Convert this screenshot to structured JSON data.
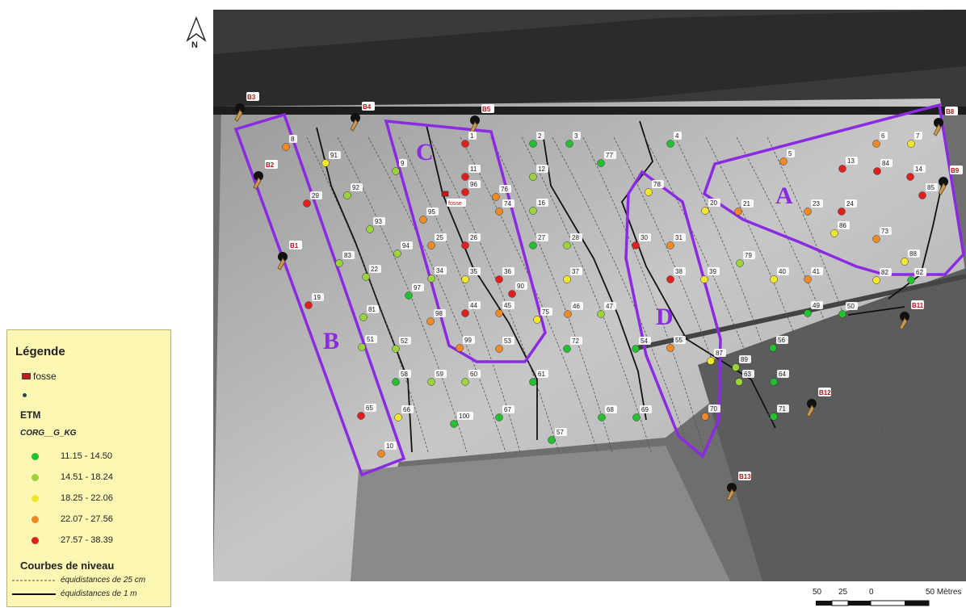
{
  "north_arrow": {
    "label": "N"
  },
  "legend": {
    "title": "Légende",
    "fosse_label": "fosse",
    "etm_label": "ETM",
    "field_label": "CORG__G_KG",
    "classes": [
      {
        "range": "11.15 - 14.50",
        "color": "#22c22e"
      },
      {
        "range": "14.51 - 18.24",
        "color": "#9bd33a"
      },
      {
        "range": "18.25 - 22.06",
        "color": "#f1e62a"
      },
      {
        "range": "22.07 - 27.56",
        "color": "#ef8a24"
      },
      {
        "range": "27.57 - 38.39",
        "color": "#e0201e"
      }
    ],
    "contours_title": "Courbes de niveau",
    "contour_dashed_label": "équidistances de 25 cm",
    "contour_solid_label": "équidistances de 1 m"
  },
  "scale_bar": {
    "ticks": [
      "50",
      "25",
      "0",
      "50 Mètres"
    ]
  },
  "zones": [
    {
      "label": "A",
      "color": "#8a2be2"
    },
    {
      "label": "B",
      "color": "#8a2be2"
    },
    {
      "label": "C",
      "color": "#8a2be2"
    },
    {
      "label": "D",
      "color": "#8a2be2"
    }
  ],
  "boreholes": [
    "B1",
    "B2",
    "B3",
    "B4",
    "B5",
    "B8",
    "B9",
    "B11",
    "B12",
    "B13"
  ],
  "fosse_marker": "fosse",
  "sample_points": [
    {
      "id": "1",
      "cls": 4
    },
    {
      "id": "2",
      "cls": 0
    },
    {
      "id": "3",
      "cls": 0
    },
    {
      "id": "4",
      "cls": 0
    },
    {
      "id": "5",
      "cls": 3
    },
    {
      "id": "6",
      "cls": 3
    },
    {
      "id": "7",
      "cls": 2
    },
    {
      "id": "8",
      "cls": 3
    },
    {
      "id": "9",
      "cls": 1
    },
    {
      "id": "10",
      "cls": 3
    },
    {
      "id": "11",
      "cls": 4
    },
    {
      "id": "12",
      "cls": 1
    },
    {
      "id": "13",
      "cls": 4
    },
    {
      "id": "14",
      "cls": 4
    },
    {
      "id": "16",
      "cls": 1
    },
    {
      "id": "19",
      "cls": 4
    },
    {
      "id": "20",
      "cls": 2
    },
    {
      "id": "21",
      "cls": 3
    },
    {
      "id": "22",
      "cls": 1
    },
    {
      "id": "23",
      "cls": 3
    },
    {
      "id": "24",
      "cls": 4
    },
    {
      "id": "25",
      "cls": 3
    },
    {
      "id": "26",
      "cls": 4
    },
    {
      "id": "27",
      "cls": 0
    },
    {
      "id": "28",
      "cls": 1
    },
    {
      "id": "29",
      "cls": 4
    },
    {
      "id": "30",
      "cls": 4
    },
    {
      "id": "31",
      "cls": 3
    },
    {
      "id": "34",
      "cls": 1
    },
    {
      "id": "35",
      "cls": 2
    },
    {
      "id": "36",
      "cls": 4
    },
    {
      "id": "37",
      "cls": 2
    },
    {
      "id": "38",
      "cls": 4
    },
    {
      "id": "39",
      "cls": 2
    },
    {
      "id": "40",
      "cls": 2
    },
    {
      "id": "41",
      "cls": 3
    },
    {
      "id": "44",
      "cls": 4
    },
    {
      "id": "45",
      "cls": 3
    },
    {
      "id": "46",
      "cls": 3
    },
    {
      "id": "47",
      "cls": 1
    },
    {
      "id": "49",
      "cls": 0
    },
    {
      "id": "50",
      "cls": 0
    },
    {
      "id": "51",
      "cls": 1
    },
    {
      "id": "52",
      "cls": 1
    },
    {
      "id": "53",
      "cls": 3
    },
    {
      "id": "54",
      "cls": 0
    },
    {
      "id": "55",
      "cls": 3
    },
    {
      "id": "56",
      "cls": 0
    },
    {
      "id": "57",
      "cls": 0
    },
    {
      "id": "58",
      "cls": 0
    },
    {
      "id": "59",
      "cls": 1
    },
    {
      "id": "60",
      "cls": 1
    },
    {
      "id": "61",
      "cls": 0
    },
    {
      "id": "62",
      "cls": 0
    },
    {
      "id": "63",
      "cls": 1
    },
    {
      "id": "64",
      "cls": 0
    },
    {
      "id": "65",
      "cls": 4
    },
    {
      "id": "66",
      "cls": 2
    },
    {
      "id": "67",
      "cls": 0
    },
    {
      "id": "68",
      "cls": 0
    },
    {
      "id": "69",
      "cls": 0
    },
    {
      "id": "70",
      "cls": 3
    },
    {
      "id": "71",
      "cls": 0
    },
    {
      "id": "72",
      "cls": 0
    },
    {
      "id": "73",
      "cls": 3
    },
    {
      "id": "74",
      "cls": 3
    },
    {
      "id": "75",
      "cls": 2
    },
    {
      "id": "76",
      "cls": 3
    },
    {
      "id": "77",
      "cls": 0
    },
    {
      "id": "78",
      "cls": 2
    },
    {
      "id": "79",
      "cls": 1
    },
    {
      "id": "81",
      "cls": 1
    },
    {
      "id": "82",
      "cls": 2
    },
    {
      "id": "83",
      "cls": 1
    },
    {
      "id": "84",
      "cls": 4
    },
    {
      "id": "85",
      "cls": 4
    },
    {
      "id": "86",
      "cls": 2
    },
    {
      "id": "87",
      "cls": 2
    },
    {
      "id": "88",
      "cls": 2
    },
    {
      "id": "89",
      "cls": 1
    },
    {
      "id": "90",
      "cls": 4
    },
    {
      "id": "91",
      "cls": 2
    },
    {
      "id": "92",
      "cls": 1
    },
    {
      "id": "93",
      "cls": 1
    },
    {
      "id": "94",
      "cls": 1
    },
    {
      "id": "95",
      "cls": 3
    },
    {
      "id": "96",
      "cls": 4
    },
    {
      "id": "97",
      "cls": 0
    },
    {
      "id": "98",
      "cls": 3
    },
    {
      "id": "99",
      "cls": 3
    },
    {
      "id": "100",
      "cls": 0
    }
  ]
}
